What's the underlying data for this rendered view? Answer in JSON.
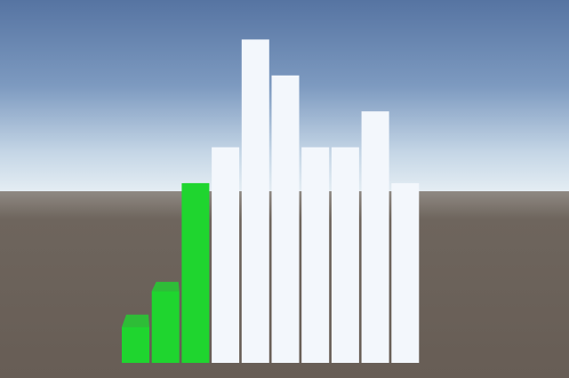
{
  "scene": {
    "bars": [
      {
        "value": 1,
        "color": "#1fd52f"
      },
      {
        "value": 2,
        "color": "#1fd52f"
      },
      {
        "value": 5,
        "color": "#1fd52f"
      },
      {
        "value": 6,
        "color": "#f3f7fc"
      },
      {
        "value": 9,
        "color": "#f3f7fc"
      },
      {
        "value": 8,
        "color": "#f3f7fc"
      },
      {
        "value": 6,
        "color": "#f3f7fc"
      },
      {
        "value": 6,
        "color": "#f3f7fc"
      },
      {
        "value": 7,
        "color": "#f3f7fc"
      },
      {
        "value": 5,
        "color": "#f3f7fc"
      }
    ]
  }
}
